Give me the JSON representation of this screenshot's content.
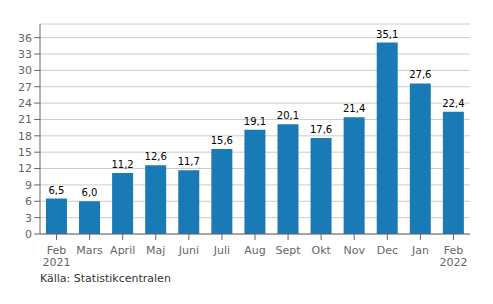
{
  "chart_data": {
    "type": "bar",
    "categories": [
      "Feb\n2021",
      "Mars",
      "April",
      "Maj",
      "Juni",
      "Juli",
      "Aug",
      "Sept",
      "Okt",
      "Nov",
      "Dec",
      "Jan",
      "Feb\n2022"
    ],
    "values": [
      6.5,
      6.0,
      11.2,
      12.6,
      11.7,
      15.6,
      19.1,
      20.1,
      17.6,
      21.4,
      35.1,
      27.6,
      22.4
    ],
    "value_labels": [
      "6,5",
      "6,0",
      "11,2",
      "12,6",
      "11,7",
      "15,6",
      "19,1",
      "20,1",
      "17,6",
      "21,4",
      "35,1",
      "27,6",
      "22,4"
    ],
    "color": "#1a7ab5",
    "ylim": [
      0,
      38.5
    ],
    "yticks": [
      0,
      3,
      6,
      9,
      12,
      15,
      18,
      21,
      24,
      27,
      30,
      33,
      36
    ],
    "grid": true,
    "annotations": [
      "Källa: Statistikcentralen"
    ]
  }
}
